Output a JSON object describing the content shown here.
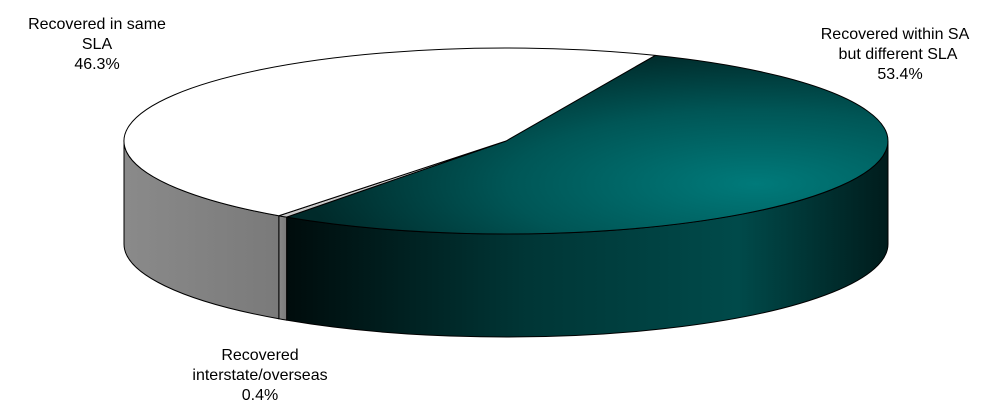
{
  "chart_data": {
    "type": "pie",
    "title": "",
    "series": [
      {
        "values": [
          53.4,
          0.4,
          46.3
        ]
      }
    ],
    "slices": [
      {
        "label_lines": [
          "Recovered within SA",
          "but different SLA"
        ],
        "value": 53.4,
        "value_label": "53.4%",
        "color": "#007070"
      },
      {
        "label_lines": [
          "Recovered",
          "interstate/overseas"
        ],
        "value": 0.4,
        "value_label": "0.4%",
        "color": "#c8c8c8"
      },
      {
        "label_lines": [
          "Recovered in same",
          "SLA"
        ],
        "value": 46.3,
        "value_label": "46.3%",
        "color": "#ffffff"
      }
    ],
    "style": "3d-pie",
    "legend": "none"
  }
}
